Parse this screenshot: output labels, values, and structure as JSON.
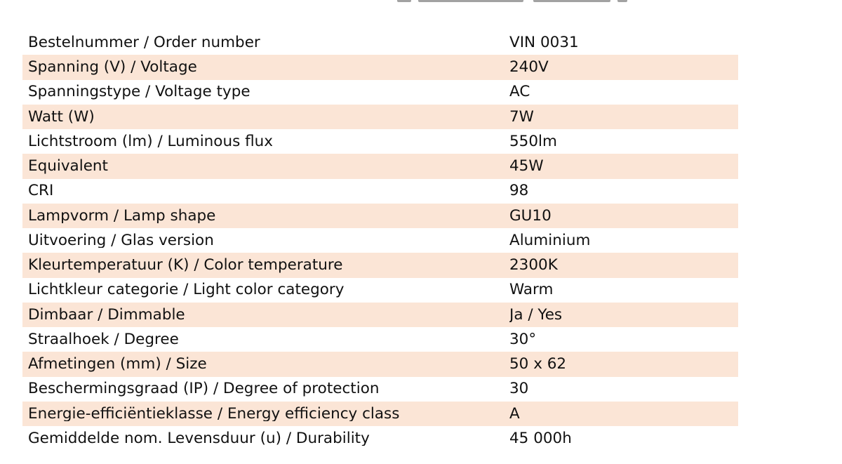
{
  "spec_table": {
    "rows": [
      {
        "label": "Bestelnummer / Order number",
        "value": "VIN 0031"
      },
      {
        "label": "Spanning (V) / Voltage",
        "value": "240V"
      },
      {
        "label": "Spanningstype / Voltage type",
        "value": "AC"
      },
      {
        "label": "Watt (W)",
        "value": "7W"
      },
      {
        "label": "Lichtstroom (lm) / Luminous flux",
        "value": "550lm"
      },
      {
        "label": "Equivalent",
        "value": "45W"
      },
      {
        "label": "CRI",
        "value": "98"
      },
      {
        "label": "Lampvorm / Lamp shape",
        "value": "GU10"
      },
      {
        "label": "Uitvoering / Glas version",
        "value": "Aluminium"
      },
      {
        "label": "Kleurtemperatuur (K) / Color temperature",
        "value": "2300K"
      },
      {
        "label": "Lichtkleur categorie / Light color category",
        "value": "Warm"
      },
      {
        "label": "Dimbaar / Dimmable",
        "value": "Ja / Yes"
      },
      {
        "label": "Straalhoek / Degree",
        "value": "30°"
      },
      {
        "label": "Afmetingen (mm) / Size",
        "value": "50 x 62"
      },
      {
        "label": "Beschermingsgraad (IP) / Degree of protection",
        "value": "30"
      },
      {
        "label": "Energie-efficiëntieklasse / Energy efficiency class",
        "value": "A"
      },
      {
        "label": "Gemiddelde nom. Levensduur (u) / Durability",
        "value": "45 000h"
      }
    ]
  },
  "colors": {
    "stripe": "#fbe5d6",
    "text": "#111111",
    "background": "#ffffff"
  }
}
